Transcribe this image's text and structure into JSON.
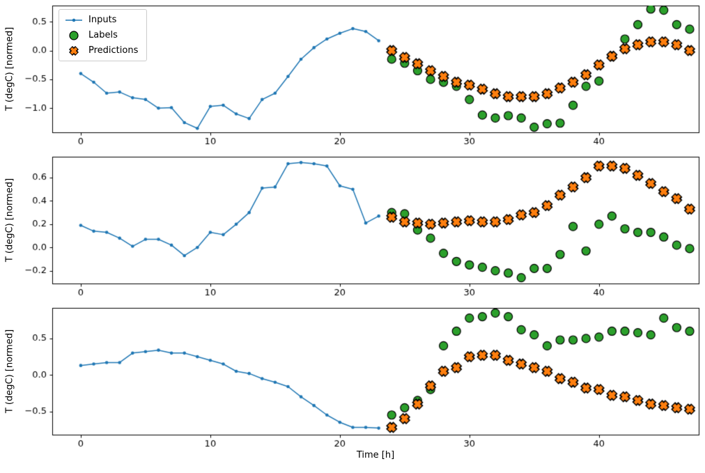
{
  "figure": {
    "xlabel": "Time [h]",
    "ylabel": "T (degC) [normed]",
    "legend": {
      "inputs": "Inputs",
      "labels": "Labels",
      "predictions": "Predictions"
    },
    "colors": {
      "inputs": "#1f77b4",
      "labels": "#2ca02c",
      "predictions": "#ff7f0e",
      "marker_edge": "#000000"
    }
  },
  "chart_data": [
    {
      "type": "line",
      "subplot": 1,
      "title": "",
      "xlabel": "",
      "ylabel": "T (degC) [normed]",
      "xlim": [
        -2.2,
        47.7
      ],
      "ylim": [
        -1.42,
        0.78
      ],
      "xticks": [
        0,
        10,
        20,
        30,
        40
      ],
      "yticks": [
        0.5,
        0.0,
        -0.5,
        -1.0
      ],
      "series": [
        {
          "name": "Inputs",
          "type": "line",
          "marker": "dot",
          "color": "#1f77b4",
          "x": [
            0,
            1,
            2,
            3,
            4,
            5,
            6,
            7,
            8,
            9,
            10,
            11,
            12,
            13,
            14,
            15,
            16,
            17,
            18,
            19,
            20,
            21,
            22,
            23
          ],
          "y": [
            -0.4,
            -0.55,
            -0.74,
            -0.72,
            -0.82,
            -0.85,
            -1.0,
            -0.99,
            -1.25,
            -1.35,
            -0.97,
            -0.95,
            -1.1,
            -1.18,
            -0.85,
            -0.74,
            -0.45,
            -0.15,
            0.05,
            0.2,
            0.3,
            0.38,
            0.33,
            0.17
          ]
        },
        {
          "name": "Labels",
          "type": "scatter",
          "marker": "circle",
          "color": "#2ca02c",
          "x": [
            24,
            25,
            26,
            27,
            28,
            29,
            30,
            31,
            32,
            33,
            34,
            35,
            36,
            37,
            38,
            39,
            40,
            41,
            42,
            43,
            44,
            45,
            46,
            47
          ],
          "y": [
            -0.15,
            -0.22,
            -0.35,
            -0.5,
            -0.55,
            -0.62,
            -0.85,
            -1.12,
            -1.17,
            -1.13,
            -1.17,
            -1.33,
            -1.27,
            -1.26,
            -0.95,
            -0.62,
            -0.53,
            -0.1,
            0.2,
            0.45,
            0.72,
            0.7,
            0.45,
            0.37
          ]
        },
        {
          "name": "Predictions",
          "type": "scatter",
          "marker": "X",
          "color": "#ff7f0e",
          "x": [
            24,
            25,
            26,
            27,
            28,
            29,
            30,
            31,
            32,
            33,
            34,
            35,
            36,
            37,
            38,
            39,
            40,
            41,
            42,
            43,
            44,
            45,
            46,
            47
          ],
          "y": [
            0.0,
            -0.12,
            -0.23,
            -0.35,
            -0.45,
            -0.55,
            -0.6,
            -0.67,
            -0.75,
            -0.8,
            -0.8,
            -0.8,
            -0.75,
            -0.65,
            -0.55,
            -0.42,
            -0.25,
            -0.1,
            0.03,
            0.1,
            0.15,
            0.15,
            0.1,
            0.0
          ]
        }
      ]
    },
    {
      "type": "line",
      "subplot": 2,
      "title": "",
      "xlabel": "",
      "ylabel": "T (degC) [normed]",
      "xlim": [
        -2.2,
        47.7
      ],
      "ylim": [
        -0.31,
        0.78
      ],
      "xticks": [
        0,
        10,
        20,
        30,
        40
      ],
      "yticks": [
        0.6,
        0.4,
        0.2,
        0.0,
        -0.2
      ],
      "series": [
        {
          "name": "Inputs",
          "type": "line",
          "marker": "dot",
          "color": "#1f77b4",
          "x": [
            0,
            1,
            2,
            3,
            4,
            5,
            6,
            7,
            8,
            9,
            10,
            11,
            12,
            13,
            14,
            15,
            16,
            17,
            18,
            19,
            20,
            21,
            22,
            23
          ],
          "y": [
            0.19,
            0.14,
            0.13,
            0.08,
            0.01,
            0.07,
            0.07,
            0.02,
            -0.07,
            0.0,
            0.13,
            0.11,
            0.2,
            0.3,
            0.51,
            0.52,
            0.72,
            0.73,
            0.72,
            0.7,
            0.53,
            0.5,
            0.21,
            0.27
          ]
        },
        {
          "name": "Labels",
          "type": "scatter",
          "marker": "circle",
          "color": "#2ca02c",
          "x": [
            24,
            25,
            26,
            27,
            28,
            29,
            30,
            31,
            32,
            33,
            34,
            35,
            36,
            37,
            38,
            39,
            40,
            41,
            42,
            43,
            44,
            45,
            46,
            47
          ],
          "y": [
            0.3,
            0.29,
            0.15,
            0.08,
            -0.05,
            -0.12,
            -0.15,
            -0.17,
            -0.2,
            -0.22,
            -0.26,
            -0.18,
            -0.18,
            -0.06,
            0.18,
            -0.03,
            0.2,
            0.27,
            0.16,
            0.13,
            0.13,
            0.09,
            0.02,
            -0.01
          ]
        },
        {
          "name": "Predictions",
          "type": "scatter",
          "marker": "X",
          "color": "#ff7f0e",
          "x": [
            24,
            25,
            26,
            27,
            28,
            29,
            30,
            31,
            32,
            33,
            34,
            35,
            36,
            37,
            38,
            39,
            40,
            41,
            42,
            43,
            44,
            45,
            46,
            47
          ],
          "y": [
            0.26,
            0.22,
            0.21,
            0.2,
            0.21,
            0.22,
            0.23,
            0.22,
            0.22,
            0.24,
            0.28,
            0.3,
            0.36,
            0.45,
            0.52,
            0.6,
            0.7,
            0.7,
            0.68,
            0.62,
            0.55,
            0.48,
            0.42,
            0.33
          ]
        }
      ]
    },
    {
      "type": "line",
      "subplot": 3,
      "title": "",
      "xlabel": "Time [h]",
      "ylabel": "T (degC) [normed]",
      "xlim": [
        -2.2,
        47.7
      ],
      "ylim": [
        -0.82,
        0.92
      ],
      "xticks": [
        0,
        10,
        20,
        30,
        40
      ],
      "yticks": [
        0.5,
        0.0,
        -0.5
      ],
      "series": [
        {
          "name": "Inputs",
          "type": "line",
          "marker": "dot",
          "color": "#1f77b4",
          "x": [
            0,
            1,
            2,
            3,
            4,
            5,
            6,
            7,
            8,
            9,
            10,
            11,
            12,
            13,
            14,
            15,
            16,
            17,
            18,
            19,
            20,
            21,
            22,
            23
          ],
          "y": [
            0.13,
            0.15,
            0.17,
            0.17,
            0.3,
            0.32,
            0.34,
            0.3,
            0.3,
            0.25,
            0.2,
            0.15,
            0.05,
            0.02,
            -0.05,
            -0.1,
            -0.16,
            -0.3,
            -0.42,
            -0.55,
            -0.65,
            -0.72,
            -0.72,
            -0.73
          ]
        },
        {
          "name": "Labels",
          "type": "scatter",
          "marker": "circle",
          "color": "#2ca02c",
          "x": [
            24,
            25,
            26,
            27,
            28,
            29,
            30,
            31,
            32,
            33,
            34,
            35,
            36,
            37,
            38,
            39,
            40,
            41,
            42,
            43,
            44,
            45,
            46,
            47
          ],
          "y": [
            -0.55,
            -0.45,
            -0.35,
            -0.2,
            0.4,
            0.6,
            0.78,
            0.8,
            0.85,
            0.8,
            0.62,
            0.55,
            0.4,
            0.48,
            0.48,
            0.5,
            0.52,
            0.6,
            0.6,
            0.58,
            0.55,
            0.78,
            0.65,
            0.6
          ]
        },
        {
          "name": "Predictions",
          "type": "scatter",
          "marker": "X",
          "color": "#ff7f0e",
          "x": [
            24,
            25,
            26,
            27,
            28,
            29,
            30,
            31,
            32,
            33,
            34,
            35,
            36,
            37,
            38,
            39,
            40,
            41,
            42,
            43,
            44,
            45,
            46,
            47
          ],
          "y": [
            -0.72,
            -0.6,
            -0.4,
            -0.15,
            0.05,
            0.1,
            0.25,
            0.27,
            0.27,
            0.2,
            0.15,
            0.1,
            0.05,
            -0.05,
            -0.1,
            -0.18,
            -0.2,
            -0.28,
            -0.3,
            -0.35,
            -0.4,
            -0.42,
            -0.45,
            -0.47
          ]
        }
      ]
    }
  ]
}
